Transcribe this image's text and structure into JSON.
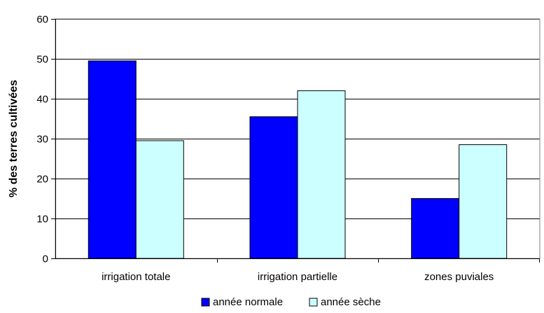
{
  "chart_data": {
    "type": "bar",
    "categories": [
      "irrigation totale",
      "irrigation partielle",
      "zones puviales"
    ],
    "series": [
      {
        "name": "année normale",
        "values": [
          49.5,
          35.5,
          15
        ],
        "color": "#0000ff"
      },
      {
        "name": "année sèche",
        "values": [
          29.5,
          42,
          28.5
        ],
        "color": "#ccffff"
      }
    ],
    "xlabel": "",
    "ylabel": "% des terres cultivées",
    "ylim": [
      0,
      60
    ],
    "yticks": [
      0,
      10,
      20,
      30,
      40,
      50,
      60
    ],
    "grid": true,
    "legend_position": "bottom"
  }
}
